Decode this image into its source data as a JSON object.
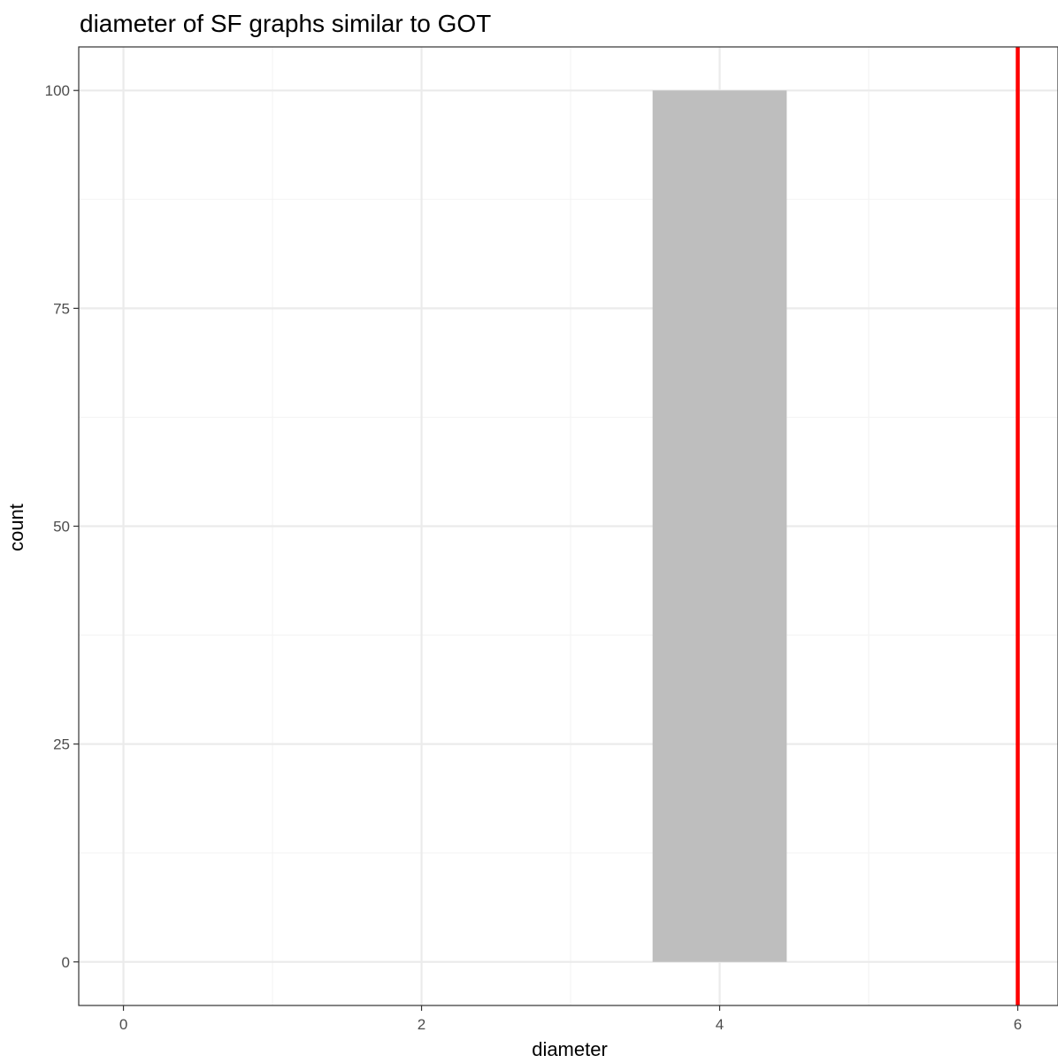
{
  "chart_data": {
    "type": "bar",
    "title": "diameter of SF graphs similar to GOT",
    "xlabel": "diameter",
    "ylabel": "count",
    "xlim": [
      -0.3,
      6.27
    ],
    "ylim": [
      -5,
      105
    ],
    "x_ticks": [
      "0",
      "2",
      "4",
      "6"
    ],
    "y_ticks": [
      "0",
      "25",
      "50",
      "75",
      "100"
    ],
    "grid": true,
    "bars": [
      {
        "x_start": 3.55,
        "x_end": 4.45,
        "count": 100
      }
    ],
    "reference_lines": [
      {
        "orientation": "vertical",
        "x": 6,
        "color": "#ff0000"
      }
    ],
    "colors": {
      "bar_fill": "#bebebe",
      "grid_major": "#ebebeb",
      "grid_minor": "#f4f4f4",
      "panel_border": "#333333"
    }
  }
}
